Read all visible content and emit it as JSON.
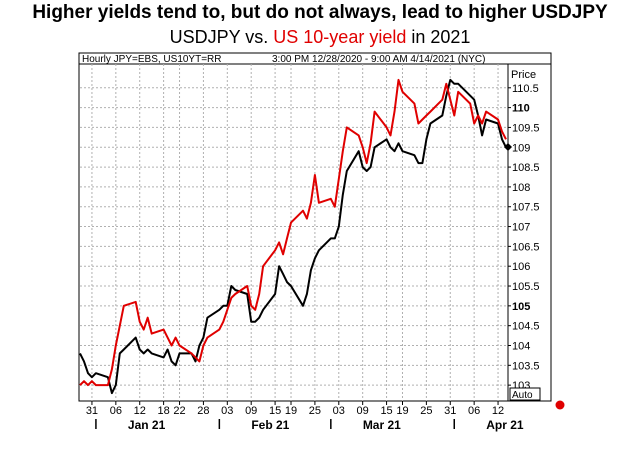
{
  "title": "Higher yields tend to, but do not always, lead to higher USDJPY",
  "subtitle": {
    "part1": "USDJPY vs. ",
    "part2": "US 10-year yield",
    "part3": " in 2021"
  },
  "colors": {
    "usdjpy": "#000000",
    "us10y": "#e00000",
    "grid": "#b0b0b0"
  },
  "chart_data": {
    "type": "line",
    "header_left": "Hourly JPY=EBS, US10YT=RR",
    "header_right": "3:00 PM 12/28/2020 - 9:00 AM 4/14/2021 (NYC)",
    "ylabel": "Price",
    "auto_label": "Auto",
    "ylim": [
      102.6,
      111.1
    ],
    "y_ticks": [
      103,
      103.5,
      104,
      104.5,
      105,
      105.5,
      106,
      106.5,
      107,
      107.5,
      108,
      108.5,
      109,
      109.5,
      110,
      110.5
    ],
    "y_tick_labels": [
      "103",
      "103.5",
      "104",
      "104.5",
      "105",
      "105.5",
      "106",
      "106.5",
      "107",
      "107.5",
      "108",
      "108.5",
      "109",
      "109.5",
      "110",
      "110.5"
    ],
    "y_bold_ticks": [
      105,
      110
    ],
    "x_day_ticks": [
      {
        "d": "2020-12-31",
        "label": "31"
      },
      {
        "d": "2021-01-06",
        "label": "06"
      },
      {
        "d": "2021-01-12",
        "label": "12"
      },
      {
        "d": "2021-01-18",
        "label": "18"
      },
      {
        "d": "2021-01-22",
        "label": "22"
      },
      {
        "d": "2021-01-28",
        "label": "28"
      },
      {
        "d": "2021-02-03",
        "label": "03"
      },
      {
        "d": "2021-02-09",
        "label": "09"
      },
      {
        "d": "2021-02-15",
        "label": "15"
      },
      {
        "d": "2021-02-19",
        "label": "19"
      },
      {
        "d": "2021-02-25",
        "label": "25"
      },
      {
        "d": "2021-03-03",
        "label": "03"
      },
      {
        "d": "2021-03-09",
        "label": "09"
      },
      {
        "d": "2021-03-15",
        "label": "15"
      },
      {
        "d": "2021-03-19",
        "label": "19"
      },
      {
        "d": "2021-03-25",
        "label": "25"
      },
      {
        "d": "2021-03-31",
        "label": "31"
      },
      {
        "d": "2021-04-06",
        "label": "06"
      },
      {
        "d": "2021-04-12",
        "label": "12"
      }
    ],
    "x_month_ticks": [
      {
        "d": "2021-01-01",
        "label": "Jan 21"
      },
      {
        "d": "2021-02-01",
        "label": "Feb 21"
      },
      {
        "d": "2021-03-01",
        "label": "Mar 21"
      },
      {
        "d": "2021-04-01",
        "label": "Apr 21"
      }
    ],
    "series": [
      {
        "key": "usdjpy",
        "points": [
          [
            "2020-12-28",
            103.8
          ],
          [
            "2020-12-29",
            103.6
          ],
          [
            "2020-12-30",
            103.3
          ],
          [
            "2020-12-31",
            103.2
          ],
          [
            "2021-01-01",
            103.3
          ],
          [
            "2021-01-04",
            103.2
          ],
          [
            "2021-01-05",
            102.8
          ],
          [
            "2021-01-06",
            103.0
          ],
          [
            "2021-01-07",
            103.8
          ],
          [
            "2021-01-08",
            103.9
          ],
          [
            "2021-01-11",
            104.2
          ],
          [
            "2021-01-12",
            103.9
          ],
          [
            "2021-01-13",
            103.8
          ],
          [
            "2021-01-14",
            103.9
          ],
          [
            "2021-01-15",
            103.8
          ],
          [
            "2021-01-18",
            103.7
          ],
          [
            "2021-01-19",
            103.9
          ],
          [
            "2021-01-20",
            103.6
          ],
          [
            "2021-01-21",
            103.5
          ],
          [
            "2021-01-22",
            103.8
          ],
          [
            "2021-01-25",
            103.8
          ],
          [
            "2021-01-26",
            103.6
          ],
          [
            "2021-01-27",
            104.0
          ],
          [
            "2021-01-28",
            104.2
          ],
          [
            "2021-01-29",
            104.7
          ],
          [
            "2021-02-01",
            104.9
          ],
          [
            "2021-02-02",
            105.0
          ],
          [
            "2021-02-03",
            105.0
          ],
          [
            "2021-02-04",
            105.5
          ],
          [
            "2021-02-05",
            105.4
          ],
          [
            "2021-02-08",
            105.3
          ],
          [
            "2021-02-09",
            104.6
          ],
          [
            "2021-02-10",
            104.6
          ],
          [
            "2021-02-11",
            104.7
          ],
          [
            "2021-02-12",
            104.9
          ],
          [
            "2021-02-15",
            105.3
          ],
          [
            "2021-02-16",
            106.0
          ],
          [
            "2021-02-17",
            105.8
          ],
          [
            "2021-02-18",
            105.6
          ],
          [
            "2021-02-19",
            105.5
          ],
          [
            "2021-02-22",
            105.0
          ],
          [
            "2021-02-23",
            105.3
          ],
          [
            "2021-02-24",
            105.9
          ],
          [
            "2021-02-25",
            106.2
          ],
          [
            "2021-02-26",
            106.4
          ],
          [
            "2021-03-01",
            106.7
          ],
          [
            "2021-03-02",
            106.7
          ],
          [
            "2021-03-03",
            107.0
          ],
          [
            "2021-03-04",
            107.8
          ],
          [
            "2021-03-05",
            108.4
          ],
          [
            "2021-03-08",
            108.9
          ],
          [
            "2021-03-09",
            108.5
          ],
          [
            "2021-03-10",
            108.4
          ],
          [
            "2021-03-11",
            108.5
          ],
          [
            "2021-03-12",
            109.0
          ],
          [
            "2021-03-15",
            109.2
          ],
          [
            "2021-03-16",
            109.0
          ],
          [
            "2021-03-17",
            108.9
          ],
          [
            "2021-03-18",
            109.1
          ],
          [
            "2021-03-19",
            108.9
          ],
          [
            "2021-03-22",
            108.8
          ],
          [
            "2021-03-23",
            108.6
          ],
          [
            "2021-03-24",
            108.6
          ],
          [
            "2021-03-25",
            109.2
          ],
          [
            "2021-03-26",
            109.6
          ],
          [
            "2021-03-29",
            109.8
          ],
          [
            "2021-03-30",
            110.3
          ],
          [
            "2021-03-31",
            110.7
          ],
          [
            "2021-04-01",
            110.6
          ],
          [
            "2021-04-02",
            110.6
          ],
          [
            "2021-04-05",
            110.3
          ],
          [
            "2021-04-06",
            110.2
          ],
          [
            "2021-04-07",
            109.8
          ],
          [
            "2021-04-08",
            109.3
          ],
          [
            "2021-04-09",
            109.7
          ],
          [
            "2021-04-12",
            109.6
          ],
          [
            "2021-04-13",
            109.2
          ],
          [
            "2021-04-14",
            109.0
          ]
        ]
      },
      {
        "key": "us10y",
        "points": [
          [
            "2020-12-28",
            103.0
          ],
          [
            "2020-12-29",
            103.1
          ],
          [
            "2020-12-30",
            103.0
          ],
          [
            "2020-12-31",
            103.1
          ],
          [
            "2021-01-01",
            103.0
          ],
          [
            "2021-01-04",
            103.0
          ],
          [
            "2021-01-05",
            103.4
          ],
          [
            "2021-01-06",
            104.0
          ],
          [
            "2021-01-07",
            104.5
          ],
          [
            "2021-01-08",
            105.0
          ],
          [
            "2021-01-11",
            105.1
          ],
          [
            "2021-01-12",
            104.6
          ],
          [
            "2021-01-13",
            104.4
          ],
          [
            "2021-01-14",
            104.7
          ],
          [
            "2021-01-15",
            104.3
          ],
          [
            "2021-01-18",
            104.4
          ],
          [
            "2021-01-19",
            104.2
          ],
          [
            "2021-01-20",
            104.0
          ],
          [
            "2021-01-21",
            104.2
          ],
          [
            "2021-01-22",
            104.0
          ],
          [
            "2021-01-25",
            103.8
          ],
          [
            "2021-01-26",
            103.7
          ],
          [
            "2021-01-27",
            103.6
          ],
          [
            "2021-01-28",
            104.0
          ],
          [
            "2021-01-29",
            104.2
          ],
          [
            "2021-02-01",
            104.4
          ],
          [
            "2021-02-02",
            104.6
          ],
          [
            "2021-02-03",
            104.9
          ],
          [
            "2021-02-04",
            105.2
          ],
          [
            "2021-02-05",
            105.3
          ],
          [
            "2021-02-08",
            105.5
          ],
          [
            "2021-02-09",
            105.0
          ],
          [
            "2021-02-10",
            104.9
          ],
          [
            "2021-02-11",
            105.3
          ],
          [
            "2021-02-12",
            106.0
          ],
          [
            "2021-02-15",
            106.4
          ],
          [
            "2021-02-16",
            106.6
          ],
          [
            "2021-02-17",
            106.3
          ],
          [
            "2021-02-18",
            106.7
          ],
          [
            "2021-02-19",
            107.1
          ],
          [
            "2021-02-22",
            107.4
          ],
          [
            "2021-02-23",
            107.2
          ],
          [
            "2021-02-24",
            107.6
          ],
          [
            "2021-02-25",
            108.3
          ],
          [
            "2021-02-26",
            107.6
          ],
          [
            "2021-03-01",
            107.7
          ],
          [
            "2021-03-02",
            107.5
          ],
          [
            "2021-03-03",
            108.2
          ],
          [
            "2021-03-04",
            108.9
          ],
          [
            "2021-03-05",
            109.5
          ],
          [
            "2021-03-08",
            109.3
          ],
          [
            "2021-03-09",
            109.0
          ],
          [
            "2021-03-10",
            108.6
          ],
          [
            "2021-03-11",
            109.1
          ],
          [
            "2021-03-12",
            109.9
          ],
          [
            "2021-03-15",
            109.5
          ],
          [
            "2021-03-16",
            109.3
          ],
          [
            "2021-03-17",
            109.9
          ],
          [
            "2021-03-18",
            110.7
          ],
          [
            "2021-03-19",
            110.4
          ],
          [
            "2021-03-22",
            110.1
          ],
          [
            "2021-03-23",
            109.6
          ],
          [
            "2021-03-24",
            109.7
          ],
          [
            "2021-03-25",
            109.8
          ],
          [
            "2021-03-26",
            109.9
          ],
          [
            "2021-03-29",
            110.2
          ],
          [
            "2021-03-30",
            110.6
          ],
          [
            "2021-03-31",
            110.2
          ],
          [
            "2021-04-01",
            109.8
          ],
          [
            "2021-04-02",
            110.4
          ],
          [
            "2021-04-05",
            110.1
          ],
          [
            "2021-04-06",
            109.6
          ],
          [
            "2021-04-07",
            109.8
          ],
          [
            "2021-04-08",
            109.6
          ],
          [
            "2021-04-09",
            109.9
          ],
          [
            "2021-04-12",
            109.7
          ],
          [
            "2021-04-13",
            109.4
          ],
          [
            "2021-04-14",
            109.2
          ]
        ]
      }
    ]
  }
}
